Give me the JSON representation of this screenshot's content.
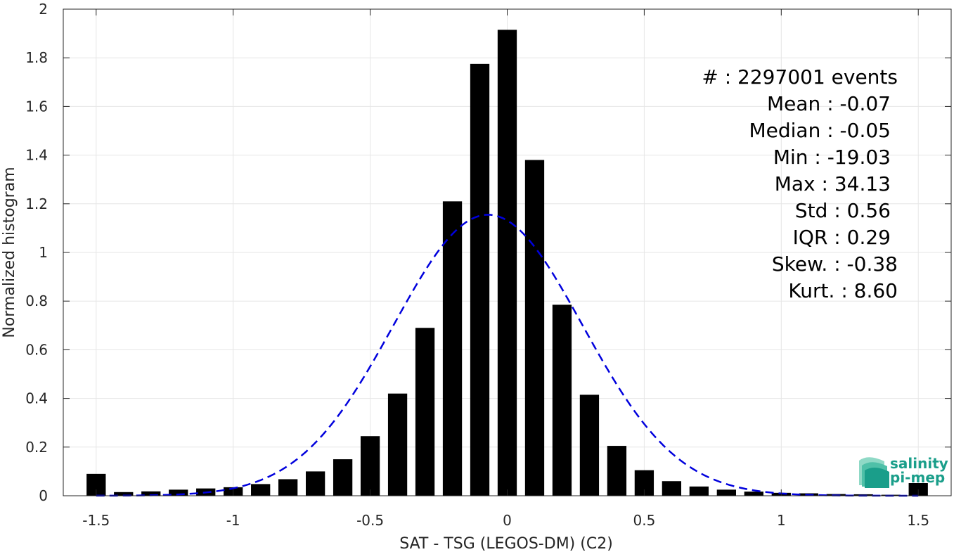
{
  "chart_data": {
    "type": "bar",
    "xlabel": "SAT - TSG (LEGOS-DM) (C2)",
    "ylabel": "Normalized histogram",
    "xlim": [
      -1.62,
      1.62
    ],
    "ylim": [
      0,
      2
    ],
    "xticks": [
      -1.5,
      -1,
      -0.5,
      0,
      0.5,
      1,
      1.5
    ],
    "xtick_labels": [
      "-1.5",
      "-1",
      "-0.5",
      "0",
      "0.5",
      "1",
      "1.5"
    ],
    "yticks": [
      0,
      0.2,
      0.4,
      0.6,
      0.8,
      1,
      1.2,
      1.4,
      1.6,
      1.8,
      2
    ],
    "ytick_labels": [
      "0",
      "0.2",
      "0.4",
      "0.6",
      "0.8",
      "1",
      "1.2",
      "1.4",
      "1.6",
      "1.8",
      "2"
    ],
    "grid": true,
    "bar_width": 0.07,
    "bin_centers": [
      -1.5,
      -1.4,
      -1.3,
      -1.2,
      -1.1,
      -1.0,
      -0.9,
      -0.8,
      -0.7,
      -0.6,
      -0.5,
      -0.4,
      -0.3,
      -0.2,
      -0.1,
      0.0,
      0.1,
      0.2,
      0.3,
      0.4,
      0.5,
      0.6,
      0.7,
      0.8,
      0.9,
      1.0,
      1.1,
      1.2,
      1.3,
      1.4,
      1.5
    ],
    "values": [
      0.09,
      0.015,
      0.018,
      0.025,
      0.03,
      0.035,
      0.048,
      0.068,
      0.1,
      0.15,
      0.245,
      0.42,
      0.69,
      1.21,
      1.775,
      1.915,
      1.38,
      0.785,
      0.415,
      0.205,
      0.105,
      0.06,
      0.038,
      0.025,
      0.017,
      0.012,
      0.01,
      0.007,
      0.006,
      0.004,
      0.052
    ],
    "fit_curve": {
      "style": "dashed",
      "color": "#0000dd",
      "mean": -0.07,
      "std": 0.345,
      "peak": 1.155,
      "x_range": [
        -1.5,
        1.5
      ]
    },
    "bar_color": "#000000",
    "stats": [
      "#  : 2297001 events",
      "Mean : -0.07",
      "Median : -0.05",
      "Min : -19.03",
      "Max : 34.13",
      "Std : 0.56",
      "IQR : 0.29",
      "Skew. : -0.38",
      "Kurt. : 8.60"
    ],
    "logo": {
      "line1": "salinity",
      "line2": "pi-mep"
    }
  }
}
